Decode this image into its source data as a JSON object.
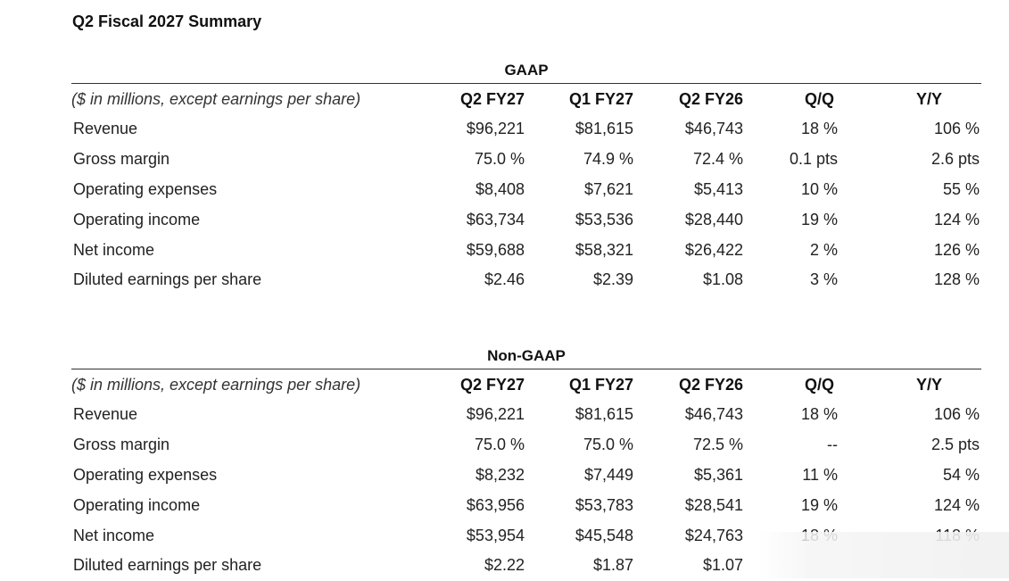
{
  "title": "Q2 Fiscal 2027 Summary",
  "columns": {
    "label": "($ in millions, except earnings per share)",
    "c1": "Q2 FY27",
    "c2": "Q1 FY27",
    "c3": "Q2 FY26",
    "c4": "Q/Q",
    "c5": "Y/Y"
  },
  "gaap": {
    "heading": "GAAP",
    "rows": [
      {
        "label": "Revenue",
        "q2fy27": "$96,221",
        "q1fy27": "$81,615",
        "q2fy26": "$46,743",
        "qq": "18 %",
        "yy": "106 %"
      },
      {
        "label": "Gross margin",
        "q2fy27": "75.0 %",
        "q1fy27": "74.9 %",
        "q2fy26": "72.4 %",
        "qq": "0.1 pts",
        "yy": "2.6 pts"
      },
      {
        "label": "Operating expenses",
        "q2fy27": "$8,408",
        "q1fy27": "$7,621",
        "q2fy26": "$5,413",
        "qq": "10 %",
        "yy": "55 %"
      },
      {
        "label": "Operating income",
        "q2fy27": "$63,734",
        "q1fy27": "$53,536",
        "q2fy26": "$28,440",
        "qq": "19 %",
        "yy": "124 %"
      },
      {
        "label": "Net income",
        "q2fy27": "$59,688",
        "q1fy27": "$58,321",
        "q2fy26": "$26,422",
        "qq": "2 %",
        "yy": "126 %"
      },
      {
        "label": "Diluted earnings per share",
        "q2fy27": "$2.46",
        "q1fy27": "$2.39",
        "q2fy26": "$1.08",
        "qq": "3 %",
        "yy": "128 %"
      }
    ]
  },
  "nongaap": {
    "heading": "Non-GAAP",
    "rows": [
      {
        "label": "Revenue",
        "q2fy27": "$96,221",
        "q1fy27": "$81,615",
        "q2fy26": "$46,743",
        "qq": "18 %",
        "yy": "106 %"
      },
      {
        "label": "Gross margin",
        "q2fy27": "75.0 %",
        "q1fy27": "75.0 %",
        "q2fy26": "72.5 %",
        "qq": "--",
        "yy": "2.5 pts"
      },
      {
        "label": "Operating expenses",
        "q2fy27": "$8,232",
        "q1fy27": "$7,449",
        "q2fy26": "$5,361",
        "qq": "11 %",
        "yy": "54 %"
      },
      {
        "label": "Operating income",
        "q2fy27": "$63,956",
        "q1fy27": "$53,783",
        "q2fy26": "$28,541",
        "qq": "19 %",
        "yy": "124 %"
      },
      {
        "label": "Net income",
        "q2fy27": "$53,954",
        "q1fy27": "$45,548",
        "q2fy26": "$24,763",
        "qq": "18 %",
        "yy": "118 %"
      },
      {
        "label": "Diluted earnings per share",
        "q2fy27": "$2.22",
        "q1fy27": "$1.87",
        "q2fy26": "$1.07",
        "qq": "",
        "yy": ""
      }
    ]
  }
}
